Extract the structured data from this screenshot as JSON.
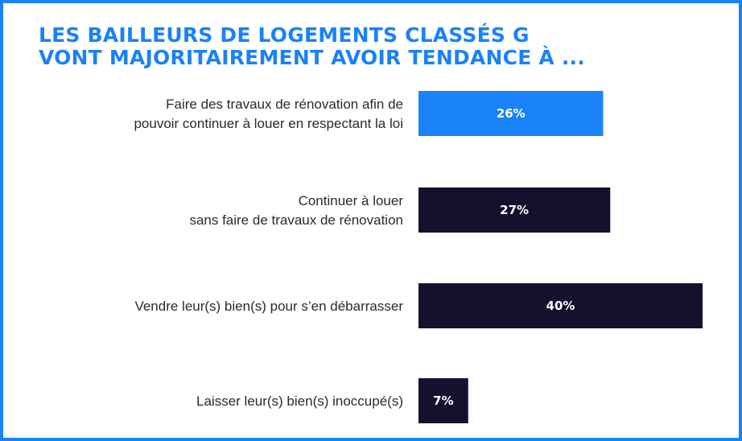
{
  "chart_data": {
    "type": "bar",
    "orientation": "horizontal",
    "title_lines": [
      "LES BAILLEURS DE LOGEMENTS CLASSÉS G",
      "VONT MAJORITAIREMENT AVOIR TENDANCE À ..."
    ],
    "categories": [
      [
        "Faire des travaux de rénovation afin de",
        "pouvoir continuer à louer en respectant la loi"
      ],
      [
        "Continuer à louer",
        "sans faire de travaux de rénovation"
      ],
      [
        "Vendre leur(s) bien(s) pour s’en débarrasser"
      ],
      [
        "Laisser leur(s) bien(s) inoccupé(s)"
      ]
    ],
    "values": [
      26,
      27,
      40,
      7
    ],
    "value_labels": [
      "26%",
      "27%",
      "40%",
      "7%"
    ],
    "unit": "%",
    "xlim": [
      0,
      40
    ],
    "grid": false,
    "legend": "none",
    "highlight_index": 0
  },
  "colors": {
    "accent": "#1a82f7",
    "bar": "#14112e",
    "label_on_bar": "#ffffff",
    "frame": "#1a82f7"
  }
}
